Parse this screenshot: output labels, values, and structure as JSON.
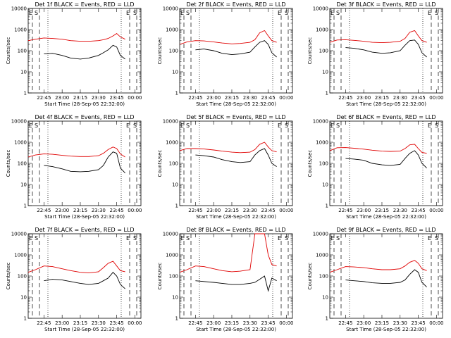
{
  "figure": {
    "panel_title_suffix": "BLACK = Events, RED = LLD",
    "xlabel": "Start Time (28-Sep-05 22:32:00)",
    "ylabel": "Counts/sec",
    "x_tick_labels": [
      "22:45",
      "23:00",
      "23:15",
      "23:30",
      "23:45",
      "00:00"
    ],
    "y_tick_labels": [
      "1",
      "10",
      "100",
      "1000",
      "10000"
    ],
    "marker_labels": [
      "E",
      "S"
    ],
    "colors": {
      "events": "#000000",
      "lld": "#e00000"
    }
  },
  "chart_data": [
    {
      "type": "line",
      "title": "Det 1f BLACK = Events, RED = LLD",
      "xlabel": "Start Time (28-Sep-05 22:32:00)",
      "ylabel": "Counts/sec",
      "x": [
        "22:32",
        "22:38",
        "22:45",
        "22:52",
        "23:00",
        "23:07",
        "23:15",
        "23:22",
        "23:30",
        "23:34",
        "23:38",
        "23:42",
        "23:45",
        "23:48",
        "23:52"
      ],
      "ylim": [
        1,
        10000
      ],
      "yscale": "log",
      "series": [
        {
          "name": "BLACK = Events",
          "values": [
            null,
            null,
            70,
            75,
            60,
            45,
            40,
            45,
            60,
            80,
            110,
            180,
            150,
            60,
            40
          ]
        },
        {
          "name": "RED = LLD",
          "values": [
            300,
            350,
            400,
            380,
            350,
            300,
            280,
            280,
            300,
            330,
            380,
            500,
            650,
            450,
            350
          ]
        }
      ]
    },
    {
      "type": "line",
      "title": "Det 2f BLACK = Events, RED = LLD",
      "xlabel": "Start Time (28-Sep-05 22:32:00)",
      "ylabel": "Counts/sec",
      "x": [
        "22:32",
        "22:38",
        "22:45",
        "22:52",
        "23:00",
        "23:07",
        "23:15",
        "23:22",
        "23:30",
        "23:34",
        "23:38",
        "23:42",
        "23:45",
        "23:48",
        "23:52"
      ],
      "ylim": [
        1,
        10000
      ],
      "yscale": "log",
      "series": [
        {
          "name": "BLACK = Events",
          "values": [
            null,
            null,
            110,
            120,
            100,
            75,
            65,
            70,
            85,
            150,
            250,
            300,
            200,
            80,
            50
          ]
        },
        {
          "name": "RED = LLD",
          "values": [
            200,
            260,
            300,
            290,
            260,
            230,
            210,
            220,
            250,
            330,
            700,
            900,
            500,
            300,
            250
          ]
        }
      ]
    },
    {
      "type": "line",
      "title": "Det 3f BLACK = Events, RED = LLD",
      "xlabel": "Start Time (28-Sep-05 22:32:00)",
      "ylabel": "Counts/sec",
      "x": [
        "22:32",
        "22:38",
        "22:45",
        "22:52",
        "23:00",
        "23:07",
        "23:15",
        "23:22",
        "23:30",
        "23:34",
        "23:38",
        "23:42",
        "23:45",
        "23:48",
        "23:52"
      ],
      "ylim": [
        1,
        10000
      ],
      "yscale": "log",
      "series": [
        {
          "name": "BLACK = Events",
          "values": [
            null,
            null,
            140,
            130,
            110,
            85,
            75,
            80,
            100,
            180,
            300,
            320,
            200,
            80,
            50
          ]
        },
        {
          "name": "RED = LLD",
          "values": [
            250,
            320,
            330,
            310,
            280,
            250,
            240,
            250,
            280,
            380,
            750,
            900,
            500,
            300,
            250
          ]
        }
      ]
    },
    {
      "type": "line",
      "title": "Det 4f BLACK = Events, RED = LLD",
      "xlabel": "Start Time (28-Sep-05 22:32:00)",
      "ylabel": "Counts/sec",
      "x": [
        "22:32",
        "22:38",
        "22:45",
        "22:52",
        "23:00",
        "23:07",
        "23:15",
        "23:22",
        "23:30",
        "23:34",
        "23:38",
        "23:42",
        "23:45",
        "23:48",
        "23:52"
      ],
      "ylim": [
        1,
        10000
      ],
      "yscale": "log",
      "series": [
        {
          "name": "BLACK = Events",
          "values": [
            null,
            null,
            80,
            70,
            55,
            42,
            40,
            42,
            50,
            80,
            200,
            350,
            300,
            60,
            35
          ]
        },
        {
          "name": "RED = LLD",
          "values": [
            200,
            250,
            280,
            270,
            240,
            220,
            210,
            210,
            230,
            300,
            450,
            600,
            500,
            280,
            200
          ]
        }
      ]
    },
    {
      "type": "line",
      "title": "Det 5f BLACK = Events, RED = LLD",
      "xlabel": "Start Time (28-Sep-05 22:32:00)",
      "ylabel": "Counts/sec",
      "x": [
        "22:32",
        "22:38",
        "22:45",
        "22:52",
        "23:00",
        "23:07",
        "23:15",
        "23:22",
        "23:30",
        "23:34",
        "23:38",
        "23:42",
        "23:45",
        "23:48",
        "23:52"
      ],
      "ylim": [
        1,
        10000
      ],
      "yscale": "log",
      "series": [
        {
          "name": "BLACK = Events",
          "values": [
            null,
            null,
            250,
            230,
            200,
            150,
            120,
            110,
            120,
            250,
            400,
            500,
            250,
            100,
            70
          ]
        },
        {
          "name": "RED = LLD",
          "values": [
            400,
            500,
            500,
            480,
            430,
            380,
            340,
            320,
            340,
            450,
            800,
            1000,
            600,
            400,
            350
          ]
        }
      ]
    },
    {
      "type": "line",
      "title": "Det 6f BLACK = Events, RED = LLD",
      "xlabel": "Start Time (28-Sep-05 22:32:00)",
      "ylabel": "Counts/sec",
      "x": [
        "22:32",
        "22:38",
        "22:45",
        "22:52",
        "23:00",
        "23:07",
        "23:15",
        "23:22",
        "23:30",
        "23:34",
        "23:38",
        "23:42",
        "23:45",
        "23:48",
        "23:52"
      ],
      "ylim": [
        1,
        10000
      ],
      "yscale": "log",
      "series": [
        {
          "name": "BLACK = Events",
          "values": [
            null,
            null,
            170,
            160,
            140,
            100,
            85,
            80,
            90,
            170,
            300,
            400,
            250,
            100,
            60
          ]
        },
        {
          "name": "RED = LLD",
          "values": [
            400,
            550,
            560,
            520,
            470,
            420,
            380,
            370,
            380,
            500,
            750,
            800,
            500,
            330,
            300
          ]
        }
      ]
    },
    {
      "type": "line",
      "title": "Det 7f BLACK = Events, RED = LLD",
      "xlabel": "Start Time (28-Sep-05 22:32:00)",
      "ylabel": "Counts/sec",
      "x": [
        "22:32",
        "22:38",
        "22:45",
        "22:52",
        "23:00",
        "23:07",
        "23:15",
        "23:22",
        "23:30",
        "23:34",
        "23:38",
        "23:42",
        "23:45",
        "23:48",
        "23:52"
      ],
      "ylim": [
        1,
        10000
      ],
      "yscale": "log",
      "series": [
        {
          "name": "BLACK = Events",
          "values": [
            null,
            null,
            60,
            70,
            65,
            55,
            45,
            40,
            45,
            60,
            80,
            150,
            100,
            40,
            25
          ]
        },
        {
          "name": "RED = LLD",
          "values": [
            150,
            200,
            300,
            280,
            220,
            180,
            150,
            140,
            160,
            250,
            400,
            500,
            300,
            180,
            160
          ]
        }
      ]
    },
    {
      "type": "line",
      "title": "Det 8f BLACK = Events, RED = LLD",
      "xlabel": "Start Time (28-Sep-05 22:32:00)",
      "ylabel": "Counts/sec",
      "x": [
        "22:32",
        "22:38",
        "22:45",
        "22:52",
        "23:00",
        "23:07",
        "23:15",
        "23:22",
        "23:30",
        "23:34",
        "23:38",
        "23:42",
        "23:45",
        "23:48",
        "23:52"
      ],
      "ylim": [
        1,
        10000
      ],
      "yscale": "log",
      "series": [
        {
          "name": "BLACK = Events",
          "values": [
            null,
            null,
            60,
            55,
            50,
            45,
            40,
            40,
            45,
            50,
            70,
            100,
            20,
            80,
            60
          ]
        },
        {
          "name": "RED = LLD",
          "values": [
            150,
            200,
            300,
            280,
            220,
            180,
            160,
            170,
            200,
            10000,
            10000,
            10000,
            1000,
            350,
            300
          ]
        }
      ]
    },
    {
      "type": "line",
      "title": "Det 9f BLACK = Events, RED = LLD",
      "xlabel": "Start Time (28-Sep-05 22:32:00)",
      "ylabel": "Counts/sec",
      "x": [
        "22:32",
        "22:38",
        "22:45",
        "22:52",
        "23:00",
        "23:07",
        "23:15",
        "23:22",
        "23:30",
        "23:34",
        "23:38",
        "23:42",
        "23:45",
        "23:48",
        "23:52"
      ],
      "ylim": [
        1,
        10000
      ],
      "yscale": "log",
      "series": [
        {
          "name": "BLACK = Events",
          "values": [
            null,
            null,
            65,
            60,
            55,
            48,
            45,
            45,
            50,
            65,
            120,
            200,
            150,
            50,
            30
          ]
        },
        {
          "name": "RED = LLD",
          "values": [
            150,
            200,
            280,
            270,
            250,
            220,
            200,
            200,
            220,
            300,
            450,
            550,
            400,
            220,
            180
          ]
        }
      ]
    }
  ]
}
